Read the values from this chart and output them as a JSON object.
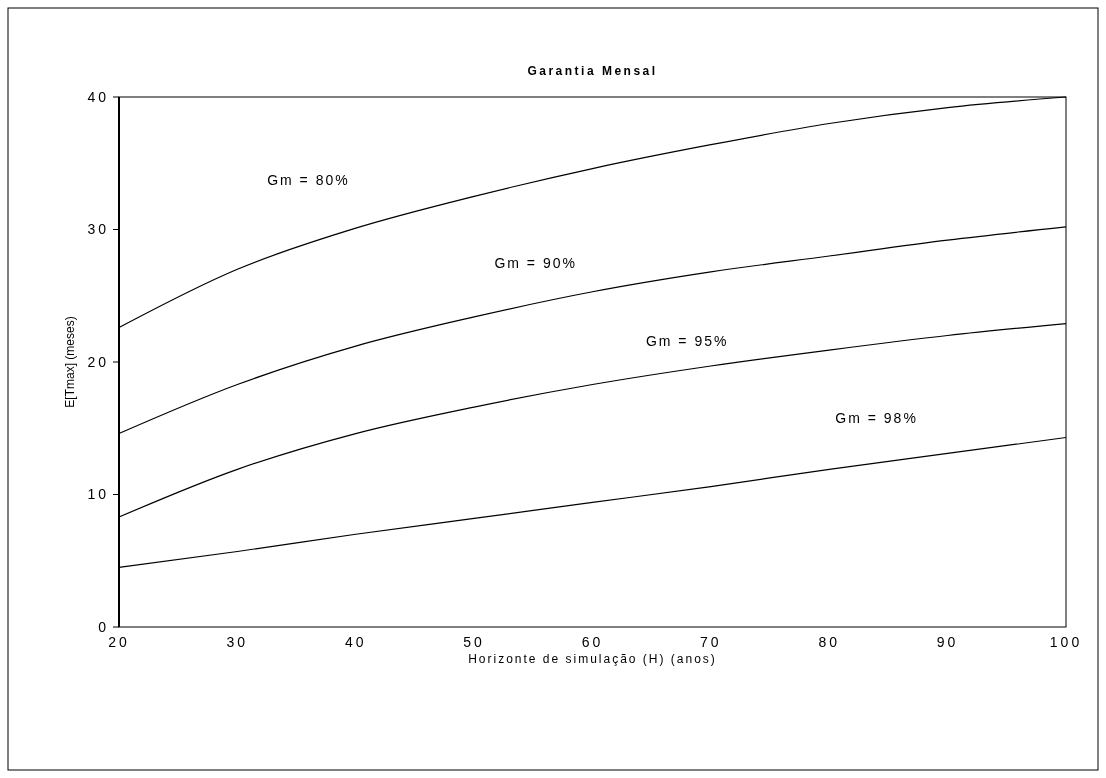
{
  "chart_data": {
    "type": "line",
    "title": "Garantia Mensal",
    "xlabel": "Horizonte de simulação (H) (anos)",
    "ylabel": "E[Tmax] (meses)",
    "x": [
      20,
      30,
      40,
      50,
      60,
      70,
      80,
      90,
      100
    ],
    "series": [
      {
        "name": "Gm = 80%",
        "color": "#000000",
        "values": [
          22.6,
          27.0,
          30.1,
          32.5,
          34.6,
          36.4,
          38.0,
          39.2,
          40
        ]
      },
      {
        "name": "Gm = 90%",
        "color": "#000000",
        "values": [
          14.6,
          18.3,
          21.2,
          23.4,
          25.3,
          26.8,
          28.0,
          29.2,
          30.2
        ]
      },
      {
        "name": "Gm = 95%",
        "color": "#000000",
        "values": [
          8.3,
          11.9,
          14.6,
          16.6,
          18.3,
          19.7,
          20.9,
          22.0,
          22.9
        ]
      },
      {
        "name": "Gm = 98%",
        "color": "#000000",
        "values": [
          4.5,
          5.7,
          7.0,
          8.2,
          9.4,
          10.6,
          11.9,
          13.1,
          14.3
        ]
      }
    ],
    "xlim": [
      20,
      100
    ],
    "ylim": [
      0,
      40
    ],
    "xticks": [
      20,
      30,
      40,
      50,
      60,
      70,
      80,
      90,
      100
    ],
    "yticks": [
      0,
      10,
      20,
      30,
      40
    ],
    "grid": false,
    "legend": false,
    "marker": "none",
    "line_style": "solid"
  }
}
